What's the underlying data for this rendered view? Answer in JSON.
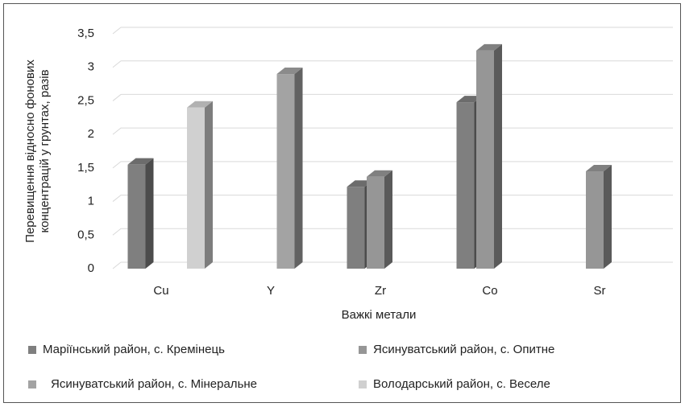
{
  "chart_data": {
    "type": "bar",
    "categories": [
      "Cu",
      "Y",
      "Zr",
      "Co",
      "Sr"
    ],
    "series": [
      {
        "name": "Маріїнський район, с. Кремінець",
        "color": "#7f7f7f",
        "values": [
          1.55,
          null,
          1.22,
          2.48,
          null
        ]
      },
      {
        "name": "Ясинуватський район, с. Опитне",
        "color": "#969696",
        "values": [
          null,
          null,
          1.37,
          3.25,
          1.45
        ]
      },
      {
        "name": "Ясинуватський район, с. Мінеральне",
        "color": "#a3a3a3",
        "values": [
          null,
          2.9,
          null,
          null,
          null
        ]
      },
      {
        "name": "Володарський район, с. Веселе",
        "color": "#d0d0d0",
        "values": [
          2.4,
          null,
          null,
          null,
          null
        ]
      }
    ],
    "xlabel": "Важкі метали",
    "ylabel": [
      "Перевищення відносно фонових",
      "концентрацій  у грунтах, разів"
    ],
    "ylim": [
      0,
      3.5
    ],
    "yticks": [
      0,
      {
        "value": 0.5,
        "label": "0,5"
      },
      1,
      {
        "value": 1.5,
        "label": "1,5"
      },
      2,
      {
        "value": 2.5,
        "label": "2,5"
      },
      3,
      {
        "value": 3.5,
        "label": "3,5"
      }
    ],
    "grid": true
  }
}
